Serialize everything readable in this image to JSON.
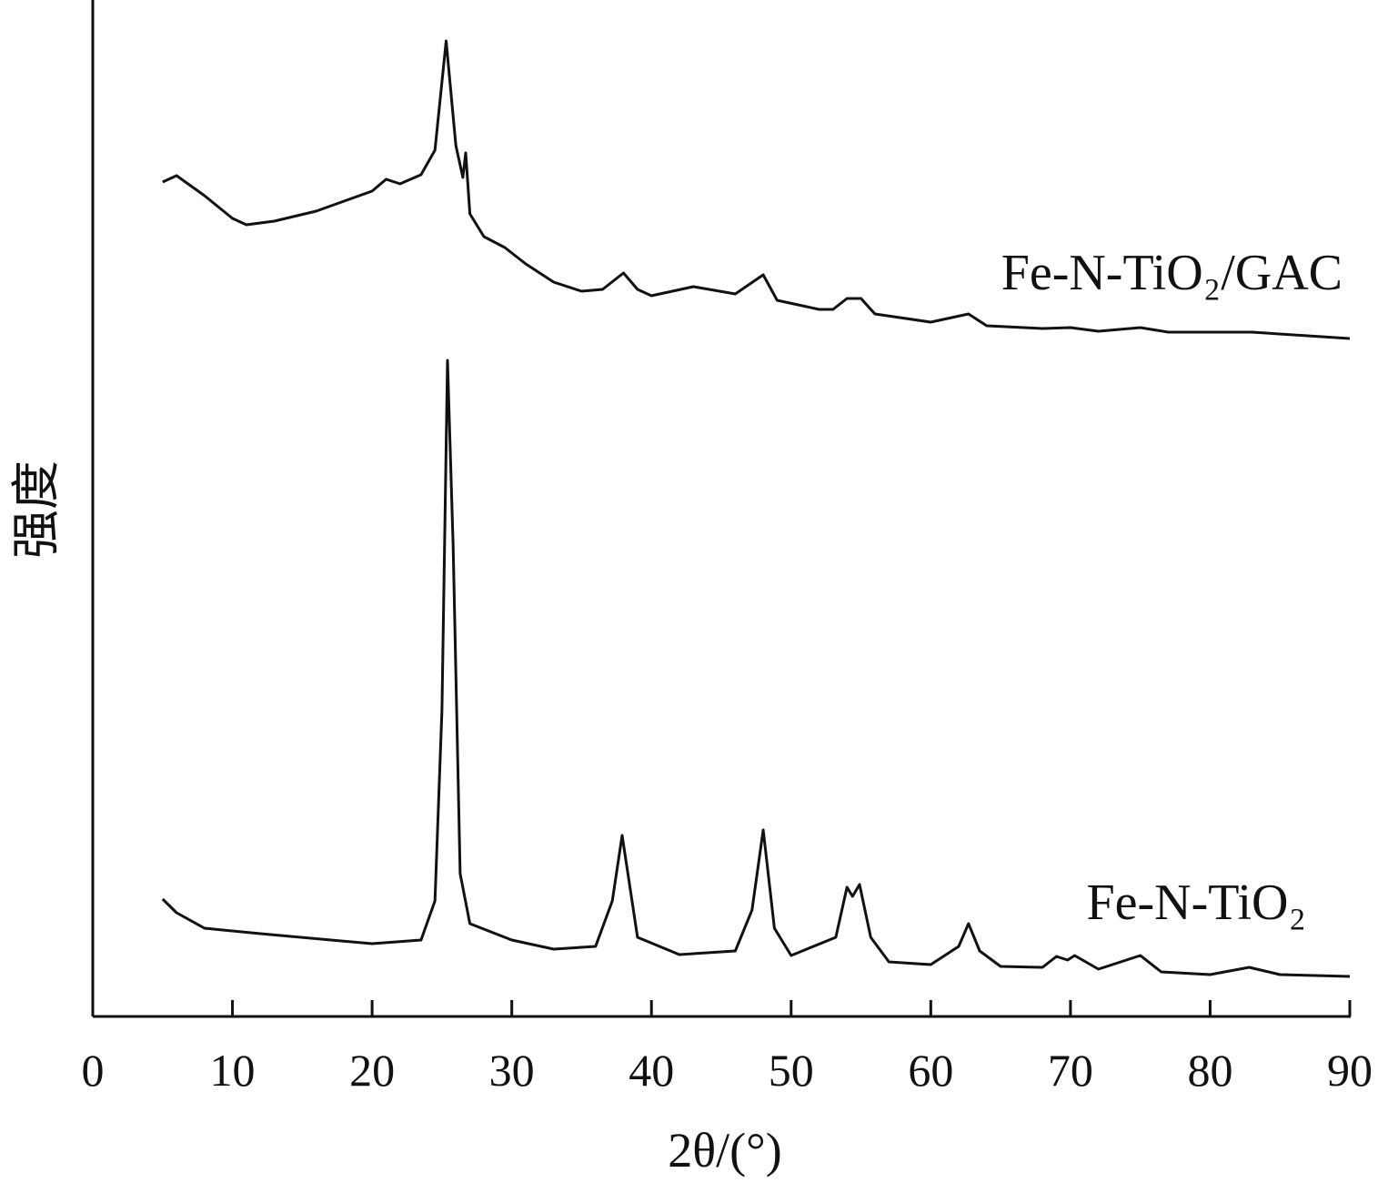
{
  "chart_data": {
    "type": "line",
    "x_label": "2θ/(°)",
    "y_label": "强度",
    "xlim": [
      0,
      90
    ],
    "xticks": [
      0,
      10,
      20,
      30,
      40,
      50,
      60,
      70,
      80,
      90
    ],
    "ylim": [
      0,
      111.7
    ],
    "series": [
      {
        "name": "Fe-N-TiO₂/GAC",
        "color": "#111111",
        "x": [
          5,
          6,
          8,
          10,
          11,
          13,
          16,
          20,
          21,
          22,
          23.5,
          24.5,
          25.3,
          26,
          26.5,
          26.7,
          27,
          28,
          29.5,
          31,
          33,
          35,
          36.5,
          38,
          39,
          40,
          43,
          46,
          48,
          49,
          52,
          53,
          54,
          55,
          56,
          60,
          62.7,
          64,
          68,
          70,
          72,
          75,
          77,
          83,
          90
        ],
        "values": [
          91.7,
          92.4,
          90.2,
          87.7,
          87.0,
          87.4,
          88.5,
          90.7,
          92.0,
          91.5,
          92.5,
          95.2,
          107.2,
          95.7,
          92.2,
          94.9,
          88.2,
          85.7,
          84.5,
          82.7,
          80.7,
          79.7,
          79.9,
          81.7,
          79.9,
          79.2,
          80.2,
          79.4,
          81.5,
          78.7,
          77.7,
          77.7,
          78.9,
          78.9,
          77.2,
          76.3,
          77.2,
          75.9,
          75.6,
          75.7,
          75.3,
          75.7,
          75.2,
          75.2,
          74.5
        ]
      },
      {
        "name": "Fe-N-TiO₂",
        "color": "#111111",
        "x": [
          5,
          6,
          8,
          12,
          20,
          23.5,
          24.5,
          25,
          25.4,
          25.8,
          26.3,
          27,
          30,
          33,
          36,
          37.2,
          37.9,
          39,
          42,
          46,
          47.2,
          48,
          48.8,
          50,
          53.2,
          54,
          54.4,
          54.9,
          55.7,
          57,
          60,
          62,
          62.7,
          63.5,
          65,
          68,
          69,
          69.8,
          70.3,
          72,
          75,
          76.5,
          80,
          82.8,
          85,
          90
        ],
        "values": [
          12.9,
          11.4,
          9.7,
          9.1,
          8.0,
          8.4,
          12.7,
          33.7,
          72.1,
          51.7,
          15.7,
          10.2,
          8.4,
          7.4,
          7.7,
          12.7,
          19.9,
          8.7,
          6.8,
          7.2,
          11.7,
          20.5,
          9.7,
          6.7,
          8.7,
          14.2,
          13.2,
          14.5,
          8.7,
          6.0,
          5.7,
          7.7,
          10.2,
          7.2,
          5.5,
          5.4,
          6.6,
          6.2,
          6.7,
          5.2,
          6.7,
          4.9,
          4.6,
          5.4,
          4.6,
          4.4
        ]
      }
    ]
  }
}
